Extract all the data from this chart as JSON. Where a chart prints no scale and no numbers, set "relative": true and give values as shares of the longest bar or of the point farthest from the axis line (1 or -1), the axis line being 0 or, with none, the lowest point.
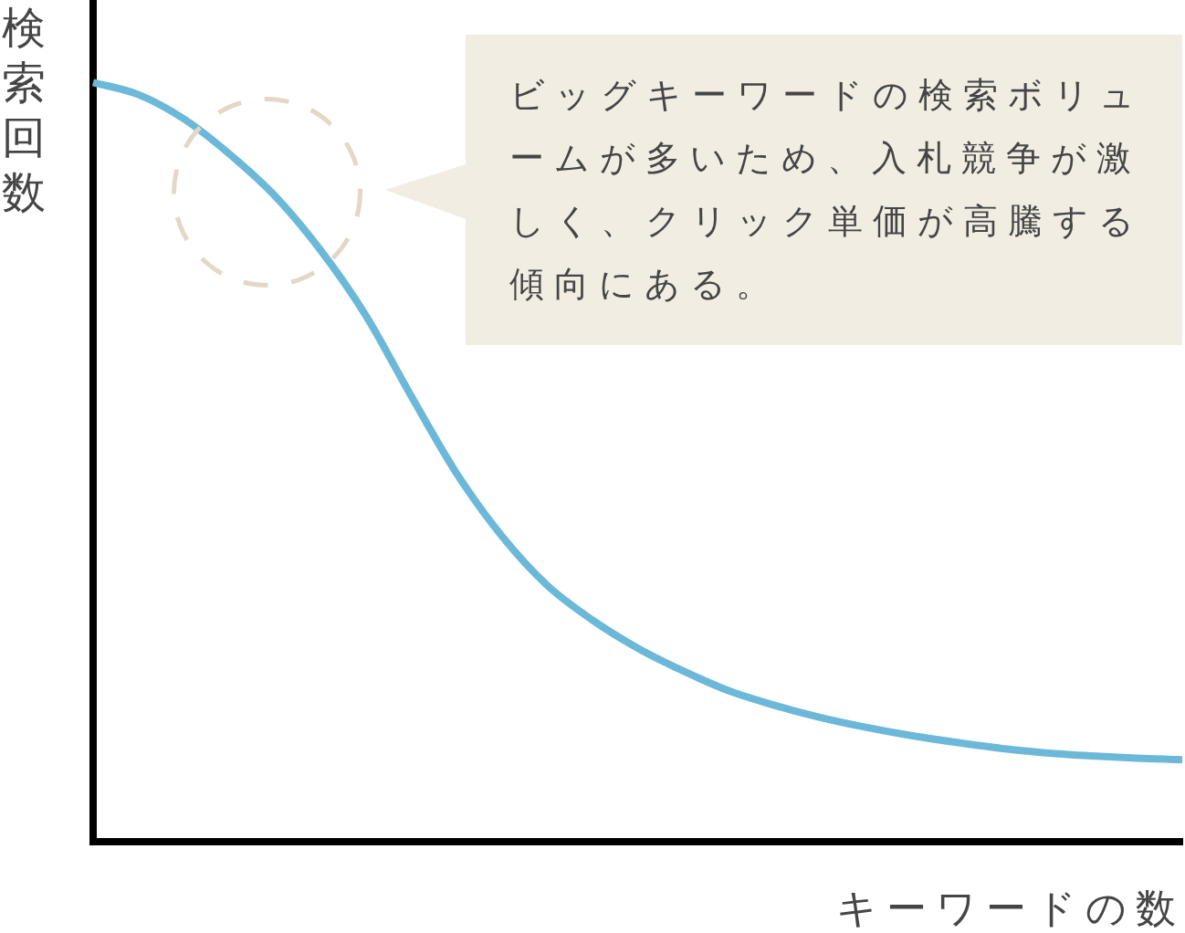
{
  "chart_data": {
    "type": "line",
    "relative": true,
    "ylabel": "検索回数",
    "xlabel": "キーワードの数",
    "annotations": [
      "ビッグキーワードの検索ボリュームが多いため、入札競争が激しく、クリック単価が高騰する傾向にある。"
    ],
    "categories": [
      null,
      null,
      null,
      null,
      null,
      null,
      null,
      null,
      null,
      null,
      null,
      null,
      null,
      null,
      null,
      null,
      null,
      null,
      null,
      null,
      null,
      null,
      null,
      null,
      null
    ],
    "series": [
      {
        "color": "#6bb8d9",
        "values": [
          1,
          0.984,
          0.952,
          0.906,
          0.851,
          0.78,
          0.694,
          0.588,
          0.486,
          0.403,
          0.338,
          0.292,
          0.255,
          0.225,
          0.199,
          0.18,
          0.164,
          0.151,
          0.14,
          0.131,
          0.123,
          0.117,
          0.113,
          0.11,
          0.108
        ]
      }
    ]
  }
}
